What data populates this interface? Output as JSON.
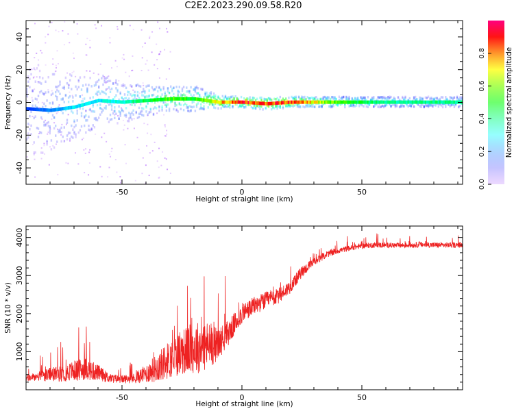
{
  "title": "C2E2.2023.290.09.58.R20",
  "chart_data": [
    {
      "type": "heatmap",
      "xlabel": "Height of straight line (km)",
      "ylabel": "Frequency (Hz)",
      "xlim": [
        -90,
        92
      ],
      "ylim": [
        -50,
        50
      ],
      "xticks": [
        -50,
        0,
        50
      ],
      "yticks": [
        -40,
        -20,
        0,
        20,
        40
      ],
      "colorbar": {
        "label": "Normalized spectral amplitude",
        "range": [
          0,
          1
        ],
        "ticks": [
          "0.0",
          "0.2",
          "0.4",
          "0.6",
          "0.8"
        ]
      },
      "ridge": {
        "x": [
          -90,
          -80,
          -70,
          -60,
          -50,
          -40,
          -30,
          -20,
          -10,
          0,
          10,
          20,
          30,
          40,
          50,
          60,
          70,
          80,
          92
        ],
        "center_freq": [
          -4,
          -5,
          -3,
          1,
          0,
          1,
          2,
          2,
          0,
          0,
          -1,
          0,
          0,
          0,
          0,
          0,
          0,
          0,
          0
        ],
        "amplitude": [
          0.15,
          0.2,
          0.3,
          0.3,
          0.35,
          0.45,
          0.55,
          0.5,
          0.75,
          0.9,
          0.85,
          0.9,
          0.7,
          0.55,
          0.45,
          0.4,
          0.4,
          0.4,
          0.4
        ],
        "spread_hz": [
          18,
          16,
          12,
          10,
          8,
          6,
          5,
          5,
          2.5,
          2,
          2.5,
          2,
          2,
          2,
          2,
          2,
          2,
          2,
          2
        ]
      }
    },
    {
      "type": "line",
      "xlabel": "Height of straight line (km)",
      "ylabel": "SNR (10 * v/v)",
      "xlim": [
        -90,
        92
      ],
      "ylim": [
        0,
        4300
      ],
      "xticks": [
        -50,
        0,
        50
      ],
      "yticks": [
        1000,
        2000,
        3000,
        4000
      ],
      "color": "#ee2222",
      "series": [
        {
          "x": [
            -90,
            -85,
            -80,
            -75,
            -70,
            -65,
            -60,
            -55,
            -50,
            -45,
            -40,
            -35,
            -30,
            -25,
            -20,
            -15,
            -10,
            -5,
            0,
            5,
            10,
            15,
            20,
            25,
            30,
            35,
            40,
            45,
            50,
            55,
            60,
            65,
            70,
            75,
            80,
            85,
            92
          ],
          "y": [
            300,
            350,
            400,
            420,
            500,
            550,
            450,
            300,
            280,
            300,
            420,
            600,
            800,
            1000,
            1100,
            1150,
            1200,
            1550,
            2000,
            2200,
            2350,
            2450,
            2700,
            3100,
            3350,
            3550,
            3650,
            3720,
            3780,
            3800,
            3800,
            3790,
            3800,
            3810,
            3800,
            3800,
            3800
          ],
          "noise": [
            150,
            200,
            300,
            350,
            450,
            500,
            350,
            200,
            180,
            220,
            400,
            650,
            850,
            1000,
            1150,
            1150,
            700,
            550,
            450,
            400,
            380,
            350,
            300,
            250,
            180,
            150,
            130,
            120,
            120,
            120,
            120,
            120,
            120,
            120,
            120,
            120,
            120
          ]
        }
      ]
    }
  ]
}
